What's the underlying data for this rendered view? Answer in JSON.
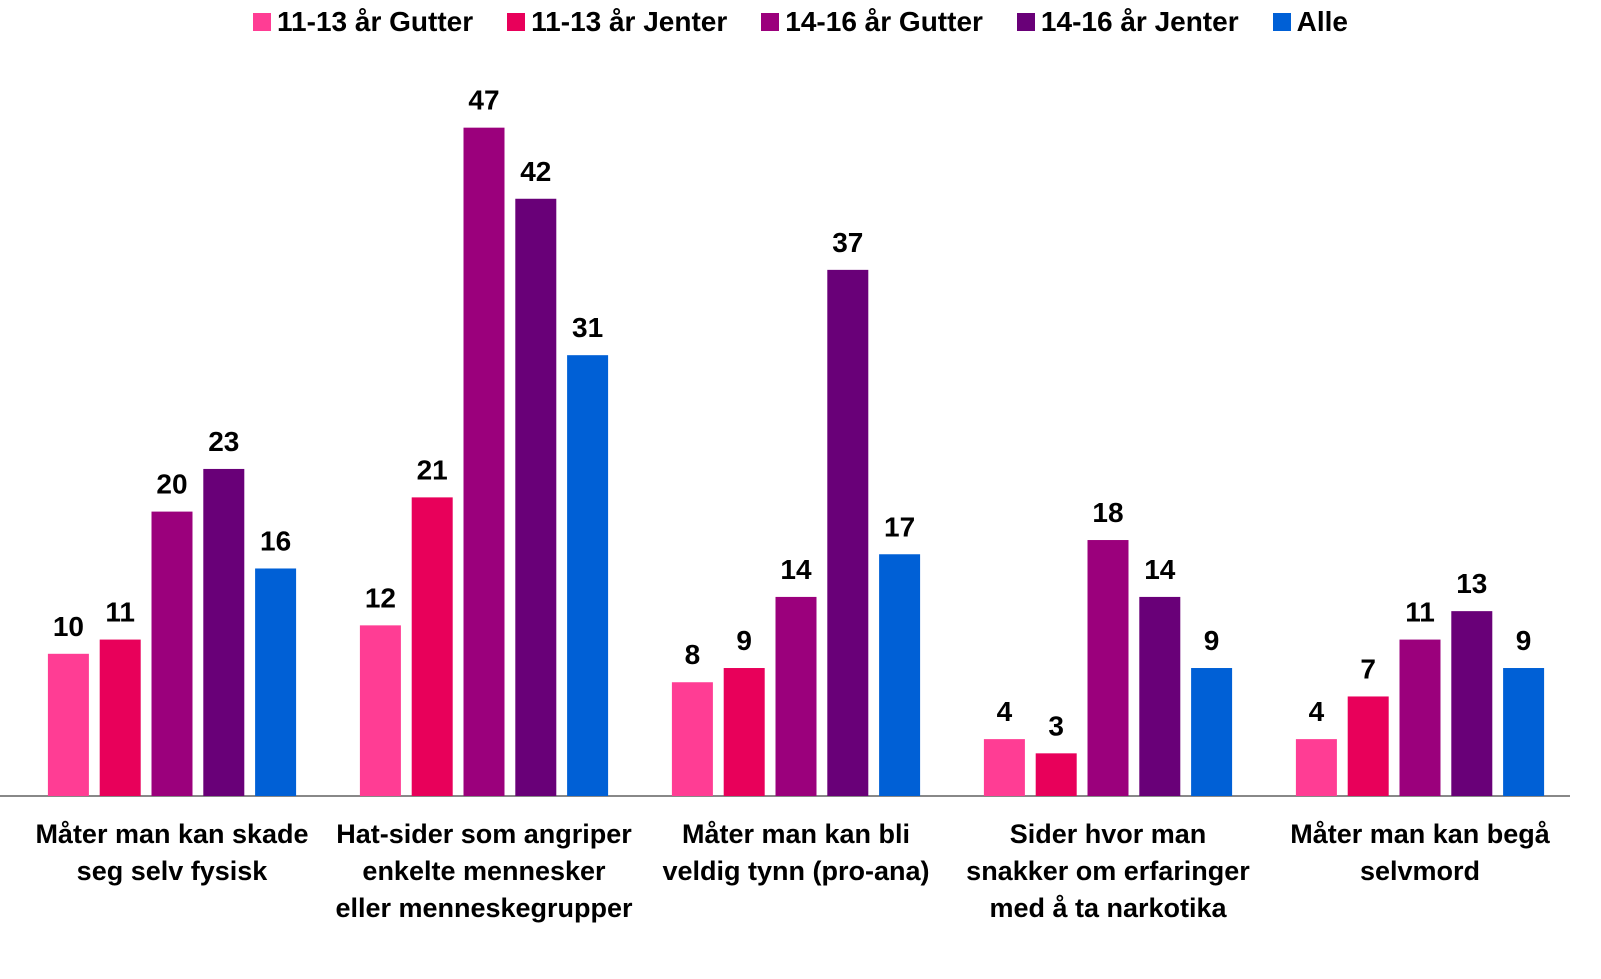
{
  "chart_data": {
    "type": "bar",
    "categories": [
      "Måter man kan skade seg selv fysisk",
      "Hat-sider som angriper enkelte mennesker eller menneskegrupper",
      "Måter man kan bli veldig tynn (pro-ana)",
      "Sider hvor man snakker om erfaringer med å ta narkotika",
      "Måter man kan begå selvmord"
    ],
    "series": [
      {
        "name": "11-13 år Gutter",
        "color": "#ff3d94",
        "values": [
          10,
          12,
          8,
          4,
          4
        ]
      },
      {
        "name": "11-13 år Jenter",
        "color": "#e8005a",
        "values": [
          11,
          21,
          9,
          3,
          7
        ]
      },
      {
        "name": "14-16 år Gutter",
        "color": "#9b007c",
        "values": [
          20,
          47,
          14,
          18,
          11
        ]
      },
      {
        "name": "14-16 år Jenter",
        "color": "#690078",
        "values": [
          23,
          42,
          37,
          14,
          13
        ]
      },
      {
        "name": "Alle",
        "color": "#0060d6",
        "values": [
          16,
          31,
          17,
          9,
          9
        ]
      }
    ],
    "ylim": [
      0,
      50
    ],
    "legend": "top"
  }
}
